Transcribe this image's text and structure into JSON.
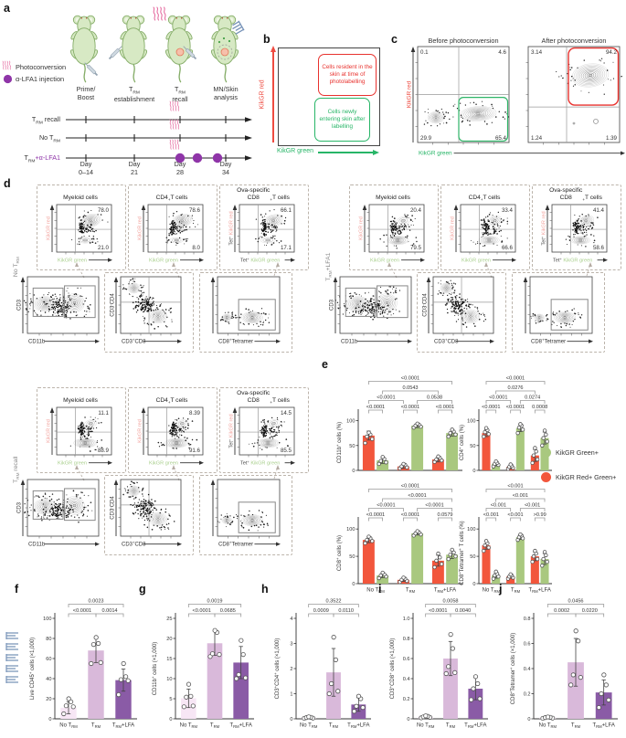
{
  "labels": {
    "a": "a",
    "b": "b",
    "c": "c",
    "d": "d",
    "e": "e",
    "f": "f",
    "g": "g",
    "h": "h",
    "i": "i",
    "j": "j"
  },
  "panel_a": {
    "legend": [
      {
        "icon": "photoconversion-rays-icon",
        "label": "Photoconversion"
      },
      {
        "icon": "purple-dot-icon",
        "label": "α-LFA1 injection"
      }
    ],
    "columns": [
      "Prime/\nBoost",
      "T~RM~\nestablishment",
      "T~RM~\nrecall",
      "MN/Skin\nanalysis"
    ],
    "rows": [
      {
        "pre": "T~RM~ recall",
        "purple": ""
      },
      {
        "pre": "No T~RM~",
        "purple": ""
      },
      {
        "pre": "T~RM~",
        "purple": "+α-LFA1"
      }
    ],
    "days": [
      "Day\n0–14",
      "Day\n21",
      "Day\n28",
      "Day\n34"
    ]
  },
  "panel_b": {
    "ylabel": "KikGR red",
    "xlabel": "KikGR green",
    "red_box": "Cells resident in the skin at time of photolabelling",
    "green_box": "Cells newly entering skin after labelling"
  },
  "panel_c": {
    "ylabel": "KikGR red",
    "xlabel": "KikGR green",
    "plots": [
      {
        "title": "Before photoconversion",
        "tl": "0.1",
        "tr": "4.6",
        "bl": "29.9",
        "br": "65.4",
        "gate": "green-bottom-right"
      },
      {
        "title": "After photoconversion",
        "tl": "3.14",
        "tr": "94.2",
        "bl": "1.24",
        "br": "1.39",
        "gate": "red-top-right"
      }
    ]
  },
  "panel_d": {
    "titles": [
      "Myeloid cells",
      "CD4^+^ T cells",
      "Ova-specific\nCD8^+^ T cells"
    ],
    "kik_xlabel": "KikGR green",
    "kik_ylabel": "KikGR red",
    "tet_prefix": "Tet^+^ ",
    "gating_xlabels": [
      "CD11b",
      "CD3^+^CD8",
      "CD8^+^Tetramer"
    ],
    "gating_ylabels": [
      "CD3",
      "CD3^-^CD4",
      ""
    ],
    "groups": [
      {
        "label": "No T~RM~",
        "values": [
          {
            "tr": "78.0",
            "br": "21.0"
          },
          {
            "tr": "78.6",
            "br": "8.0"
          },
          {
            "tr": "66.1",
            "br": "17.1"
          }
        ]
      },
      {
        "label": "T~RM~+LFA1",
        "values": [
          {
            "tr": "20.4",
            "br": "79.5"
          },
          {
            "tr": "33.4",
            "br": "66.6"
          },
          {
            "tr": "41.4",
            "br": "58.6"
          }
        ]
      },
      {
        "label": "T~RM~ recall",
        "values": [
          {
            "tr": "11.1",
            "br": "88.9"
          },
          {
            "tr": "8.39",
            "br": "91.6"
          },
          {
            "tr": "14.5",
            "br": "85.5"
          }
        ]
      }
    ]
  },
  "legend_e": [
    {
      "label": "KikGR Green+",
      "color": "#a9c87f"
    },
    {
      "label": "KikGR Red+ Green+",
      "color": "#f2563c"
    }
  ],
  "chart_data": [
    {
      "id": "e1",
      "type": "bar",
      "ylabel": "CD11b^+^ cells (%)",
      "ymax": 112,
      "yticks": [
        "0",
        "50",
        "100"
      ],
      "categories": [
        "No T~RM~",
        "T~RM~",
        "T~RM~+LFA"
      ],
      "show_xticklabels": false,
      "series": [
        {
          "name": "KikGR Red+ Green+",
          "color": "#f2563c",
          "values": [
            70,
            8,
            22
          ],
          "err": [
            9,
            4,
            5
          ],
          "dots": [
            [
              55,
              63,
              68,
              72,
              76
            ],
            [
              4,
              6,
              8,
              11,
              13
            ],
            [
              17,
              20,
              22,
              25,
              28
            ]
          ]
        },
        {
          "name": "KikGR Green+",
          "color": "#a9c87f",
          "values": [
            20,
            90,
            75
          ],
          "err": [
            6,
            4,
            6
          ],
          "dots": [
            [
              13,
              16,
              19,
              23,
              27
            ],
            [
              86,
              88,
              90,
              92,
              94
            ],
            [
              68,
              72,
              75,
              78,
              82
            ]
          ]
        }
      ],
      "brackets": [
        {
          "a": 0,
          "b": 1,
          "lvl": 0,
          "p": "<0.0001"
        },
        {
          "a": 2,
          "b": 3,
          "lvl": 0,
          "p": "<0.0001"
        },
        {
          "a": 4,
          "b": 5,
          "lvl": 0,
          "p": "<0.0001"
        },
        {
          "a": 0,
          "b": 2,
          "lvl": 1,
          "p": "<0.0001"
        },
        {
          "a": 3,
          "b": 5,
          "lvl": 1,
          "p": "0.0538"
        },
        {
          "a": 1,
          "b": 4,
          "lvl": 2,
          "p": "0.0543"
        },
        {
          "a": 0,
          "b": 5,
          "lvl": 3,
          "p": "<0.0001"
        }
      ]
    },
    {
      "id": "e2",
      "type": "bar",
      "ylabel": "CD4^+^ cells (%)",
      "ymax": 112,
      "yticks": [
        "0",
        "50",
        "100"
      ],
      "categories": [
        "No T~RM~",
        "T~RM~",
        "T~RM~+LFA"
      ],
      "show_xticklabels": false,
      "series": [
        {
          "name": "KikGR Red+ Green+",
          "color": "#f2563c",
          "values": [
            75,
            7,
            30
          ],
          "err": [
            7,
            4,
            12
          ],
          "dots": [
            [
              68,
              73,
              77,
              81,
              85
            ],
            [
              3,
              5,
              7,
              9,
              12
            ],
            [
              15,
              22,
              30,
              38,
              45
            ]
          ]
        },
        {
          "name": "KikGR Green+",
          "color": "#a9c87f",
          "values": [
            13,
            85,
            65
          ],
          "err": [
            4,
            7,
            12
          ],
          "dots": [
            [
              8,
              11,
              13,
              15,
              18
            ],
            [
              75,
              82,
              86,
              90,
              93
            ],
            [
              50,
              58,
              65,
              72,
              80
            ]
          ]
        }
      ],
      "brackets": [
        {
          "a": 0,
          "b": 1,
          "lvl": 0,
          "p": "<0.0001"
        },
        {
          "a": 2,
          "b": 3,
          "lvl": 0,
          "p": "<0.0001"
        },
        {
          "a": 4,
          "b": 5,
          "lvl": 0,
          "p": "0.0008"
        },
        {
          "a": 0,
          "b": 2,
          "lvl": 1,
          "p": "<0.0001"
        },
        {
          "a": 3,
          "b": 5,
          "lvl": 1,
          "p": "0.0274"
        },
        {
          "a": 1,
          "b": 4,
          "lvl": 2,
          "p": "0.0276"
        },
        {
          "a": 0,
          "b": 5,
          "lvl": 3,
          "p": "<0.0001"
        }
      ]
    },
    {
      "id": "e3",
      "type": "bar",
      "ylabel": "CD8^+^ cells (%)",
      "ymax": 112,
      "yticks": [
        "0",
        "50",
        "100"
      ],
      "categories": [
        "No T~RM~",
        "T~RM~",
        "T~RM~+LFA"
      ],
      "show_xticklabels": true,
      "series": [
        {
          "name": "KikGR Red+ Green+",
          "color": "#f2563c",
          "values": [
            80,
            7,
            42
          ],
          "err": [
            5,
            3,
            10
          ],
          "dots": [
            [
              74,
              78,
              80,
              83,
              86
            ],
            [
              3,
              5,
              7,
              9,
              11
            ],
            [
              30,
              36,
              42,
              48,
              55
            ]
          ]
        },
        {
          "name": "KikGR Green+",
          "color": "#a9c87f",
          "values": [
            15,
            92,
            53
          ],
          "err": [
            4,
            3,
            7
          ],
          "dots": [
            [
              10,
              13,
              15,
              17,
              20
            ],
            [
              88,
              90,
              92,
              94,
              96
            ],
            [
              45,
              50,
              53,
              57,
              62
            ]
          ]
        }
      ],
      "brackets": [
        {
          "a": 0,
          "b": 1,
          "lvl": 0,
          "p": "<0.0001"
        },
        {
          "a": 2,
          "b": 3,
          "lvl": 0,
          "p": "<0.0001"
        },
        {
          "a": 4,
          "b": 5,
          "lvl": 0,
          "p": "0.0579"
        },
        {
          "a": 0,
          "b": 2,
          "lvl": 1,
          "p": "<0.0001"
        },
        {
          "a": 3,
          "b": 5,
          "lvl": 1,
          "p": "<0.0001"
        },
        {
          "a": 1,
          "b": 5,
          "lvl": 2,
          "p": "<0.0001"
        },
        {
          "a": 0,
          "b": 5,
          "lvl": 3,
          "p": "<0.0001"
        }
      ]
    },
    {
      "id": "e4",
      "type": "bar",
      "ylabel": "CD8^+^Tetramer^+^ T cells (%)",
      "ymax": 112,
      "yticks": [
        "0",
        "50",
        "100"
      ],
      "categories": [
        "No T~RM~",
        "T~RM~",
        "T~RM~+LFA"
      ],
      "show_xticklabels": true,
      "series": [
        {
          "name": "KikGR Red+ Green+",
          "color": "#f2563c",
          "values": [
            70,
            13,
            50
          ],
          "err": [
            7,
            3,
            8
          ],
          "dots": [
            [
              60,
              66,
              70,
              74,
              78
            ],
            [
              9,
              11,
              13,
              15,
              17
            ],
            [
              40,
              45,
              50,
              55,
              60
            ]
          ]
        },
        {
          "name": "KikGR Green+",
          "color": "#a9c87f",
          "values": [
            15,
            85,
            45
          ],
          "err": [
            5,
            4,
            10
          ],
          "dots": [
            [
              9,
              13,
              15,
              18,
              22
            ],
            [
              80,
              83,
              85,
              88,
              90
            ],
            [
              33,
              40,
              45,
              52,
              58
            ]
          ]
        }
      ],
      "brackets": [
        {
          "a": 0,
          "b": 1,
          "lvl": 0,
          "p": "<0.001"
        },
        {
          "a": 2,
          "b": 3,
          "lvl": 0,
          "p": "<0.001"
        },
        {
          "a": 4,
          "b": 5,
          "lvl": 0,
          "p": ">0.99"
        },
        {
          "a": 0,
          "b": 2,
          "lvl": 1,
          "p": "<0.001"
        },
        {
          "a": 3,
          "b": 5,
          "lvl": 1,
          "p": "<0.001"
        },
        {
          "a": 1,
          "b": 5,
          "lvl": 2,
          "p": "<0.001"
        },
        {
          "a": 0,
          "b": 5,
          "lvl": 3,
          "p": "<0.001"
        }
      ]
    },
    {
      "id": "f",
      "type": "bar",
      "ylabel": "Live CD45^+^ cells (×1,000)",
      "ymax": 100,
      "yticks": [
        "0",
        "20",
        "40",
        "60",
        "80",
        "100"
      ],
      "categories": [
        "No T~RM~",
        "T~RM~",
        "T~RM~+LFA"
      ],
      "show_xticklabels": true,
      "series": [
        {
          "colors": [
            "#f7e6f5",
            "#d9b9da",
            "#8a5ba6"
          ],
          "values": [
            11,
            68,
            38.5
          ],
          "err": [
            6,
            12,
            11
          ],
          "dots": [
            [
              5,
              12,
              13,
              17,
              20
            ],
            [
              55,
              56,
              74,
              75,
              81
            ],
            [
              24,
              38,
              39,
              42,
              55
            ]
          ]
        }
      ],
      "brackets": [
        {
          "a": 0,
          "b": 1,
          "lvl": 0,
          "p": "<0.0001"
        },
        {
          "a": 1,
          "b": 2,
          "lvl": 0,
          "p": "0.0014"
        },
        {
          "a": 0,
          "b": 2,
          "lvl": 1,
          "p": "0.0023"
        }
      ]
    },
    {
      "id": "g",
      "type": "bar",
      "ylabel": "CD11b^+^ cells (×1,000)",
      "ymax": 25,
      "yticks": [
        "0",
        "5",
        "10",
        "15",
        "20",
        "25"
      ],
      "categories": [
        "No T~RM~",
        "T~RM~",
        "T~RM~+LFA"
      ],
      "show_xticklabels": true,
      "series": [
        {
          "colors": [
            "#f7e6f5",
            "#d9b9da",
            "#8a5ba6"
          ],
          "values": [
            5.1,
            18.8,
            14
          ],
          "err": [
            2.3,
            3,
            4
          ],
          "dots": [
            [
              3,
              3.2,
              5.4,
              5.6,
              8.6
            ],
            [
              15.5,
              16,
              16.2,
              21.5,
              22
            ],
            [
              10,
              10.2,
              11,
              16,
              19.5
            ]
          ]
        }
      ],
      "brackets": [
        {
          "a": 0,
          "b": 1,
          "lvl": 0,
          "p": "<0.0001"
        },
        {
          "a": 1,
          "b": 2,
          "lvl": 0,
          "p": "0.0685"
        },
        {
          "a": 0,
          "b": 2,
          "lvl": 1,
          "p": "0.0019"
        }
      ]
    },
    {
      "id": "h",
      "type": "bar",
      "ylabel": "CD3^+^CD4^+^ cells (×1,000)",
      "ymax": 4,
      "yticks": [
        "0",
        "1",
        "2",
        "3",
        "4"
      ],
      "categories": [
        "No T~RM~",
        "T~RM~",
        "T~RM~+LFA"
      ],
      "show_xticklabels": true,
      "series": [
        {
          "colors": [
            "#f7e6f5",
            "#d9b9da",
            "#8a5ba6"
          ],
          "values": [
            0.05,
            1.85,
            0.57
          ],
          "err": [
            0.04,
            0.95,
            0.27
          ],
          "dots": [
            [
              0.02,
              0.03,
              0.05,
              0.06,
              0.08
            ],
            [
              1.0,
              1.1,
              1.4,
              2.35,
              3.25
            ],
            [
              0.3,
              0.45,
              0.5,
              0.8,
              0.9
            ]
          ]
        }
      ],
      "brackets": [
        {
          "a": 0,
          "b": 1,
          "lvl": 0,
          "p": "0.0009"
        },
        {
          "a": 1,
          "b": 2,
          "lvl": 0,
          "p": "0.0110"
        },
        {
          "a": 0,
          "b": 2,
          "lvl": 1,
          "p": "0.3522"
        }
      ]
    },
    {
      "id": "i",
      "type": "bar",
      "ylabel": "CD3^+^CD8^+^ cells (×1,000)",
      "ymax": 1,
      "yticks": [
        "0",
        "0.2",
        "0.4",
        "0.6",
        "0.8",
        "1.0"
      ],
      "categories": [
        "No T~RM~",
        "T~RM~",
        "T~RM~+LFA"
      ],
      "show_xticklabels": true,
      "series": [
        {
          "colors": [
            "#f7e6f5",
            "#d9b9da",
            "#8a5ba6"
          ],
          "values": [
            0.02,
            0.6,
            0.3
          ],
          "err": [
            0.015,
            0.17,
            0.11
          ],
          "dots": [
            [
              0.01,
              0.015,
              0.02,
              0.025,
              0.03
            ],
            [
              0.45,
              0.46,
              0.52,
              0.7,
              0.84
            ],
            [
              0.19,
              0.2,
              0.3,
              0.35,
              0.42
            ]
          ]
        }
      ],
      "brackets": [
        {
          "a": 0,
          "b": 1,
          "lvl": 0,
          "p": "<0.0001"
        },
        {
          "a": 1,
          "b": 2,
          "lvl": 0,
          "p": "0.0040"
        },
        {
          "a": 0,
          "b": 2,
          "lvl": 1,
          "p": "0.0058"
        }
      ]
    },
    {
      "id": "j",
      "type": "bar",
      "ylabel": "CD8^+^Tetramer^+^ cells (×1,000)",
      "ymax": 0.8,
      "yticks": [
        "0",
        "0.2",
        "0.4",
        "0.6",
        "0.8"
      ],
      "categories": [
        "No T~RM~",
        "T~RM~",
        "T~RM~+LFA"
      ],
      "show_xticklabels": true,
      "series": [
        {
          "colors": [
            "#f7e6f5",
            "#d9b9da",
            "#8a5ba6"
          ],
          "values": [
            0.01,
            0.45,
            0.21
          ],
          "err": [
            0.008,
            0.19,
            0.1
          ],
          "dots": [
            [
              0.004,
              0.006,
              0.01,
              0.012,
              0.015
            ],
            [
              0.27,
              0.33,
              0.35,
              0.62,
              0.7
            ],
            [
              0.09,
              0.15,
              0.2,
              0.27,
              0.35
            ]
          ]
        }
      ],
      "brackets": [
        {
          "a": 0,
          "b": 1,
          "lvl": 0,
          "p": "0.0002"
        },
        {
          "a": 1,
          "b": 2,
          "lvl": 0,
          "p": "0.0220"
        },
        {
          "a": 0,
          "b": 2,
          "lvl": 1,
          "p": "0.0456"
        }
      ]
    }
  ]
}
